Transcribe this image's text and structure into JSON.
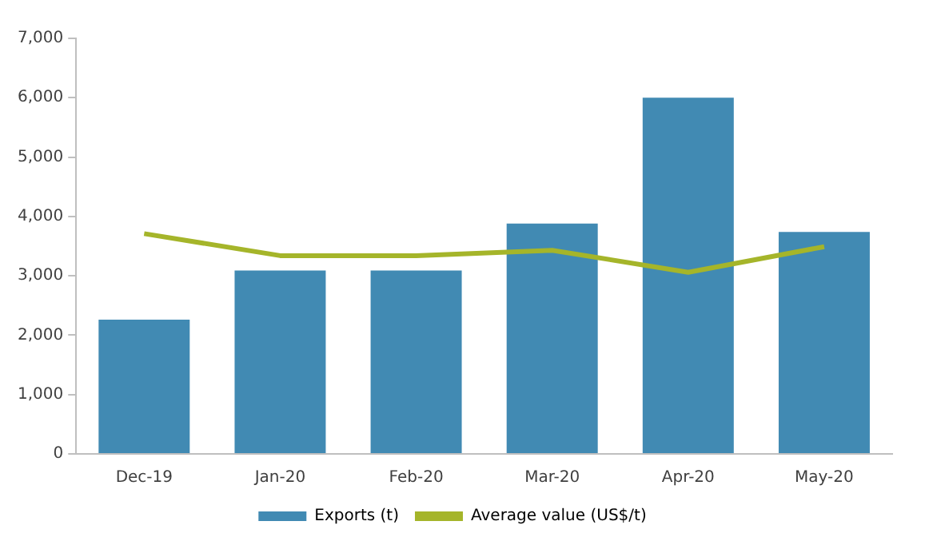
{
  "chart_data": {
    "type": "bar",
    "categories": [
      "Dec-19",
      "Jan-20",
      "Feb-20",
      "Mar-20",
      "Apr-20",
      "May-20"
    ],
    "series": [
      {
        "name": "Exports (t)",
        "color": "#418ab3",
        "values": [
          2260,
          3090,
          3090,
          3880,
          6000,
          3740
        ]
      },
      {
        "name": "Average value (US$/t)",
        "type": "line",
        "color": "#a5b52a",
        "values": [
          3710,
          3340,
          3340,
          3430,
          3060,
          3490
        ]
      }
    ],
    "ylim": [
      0,
      7000
    ],
    "yticks": [
      {
        "value": 0,
        "label": "0"
      },
      {
        "value": 1000,
        "label": "1,000"
      },
      {
        "value": 2000,
        "label": "2,000"
      },
      {
        "value": 3000,
        "label": "3,000"
      },
      {
        "value": 4000,
        "label": "4,000"
      },
      {
        "value": 5000,
        "label": "5,000"
      },
      {
        "value": 6000,
        "label": "6,000"
      },
      {
        "value": 7000,
        "label": "7,000"
      }
    ],
    "grid": false,
    "legend": "bottom",
    "marker": "none"
  }
}
